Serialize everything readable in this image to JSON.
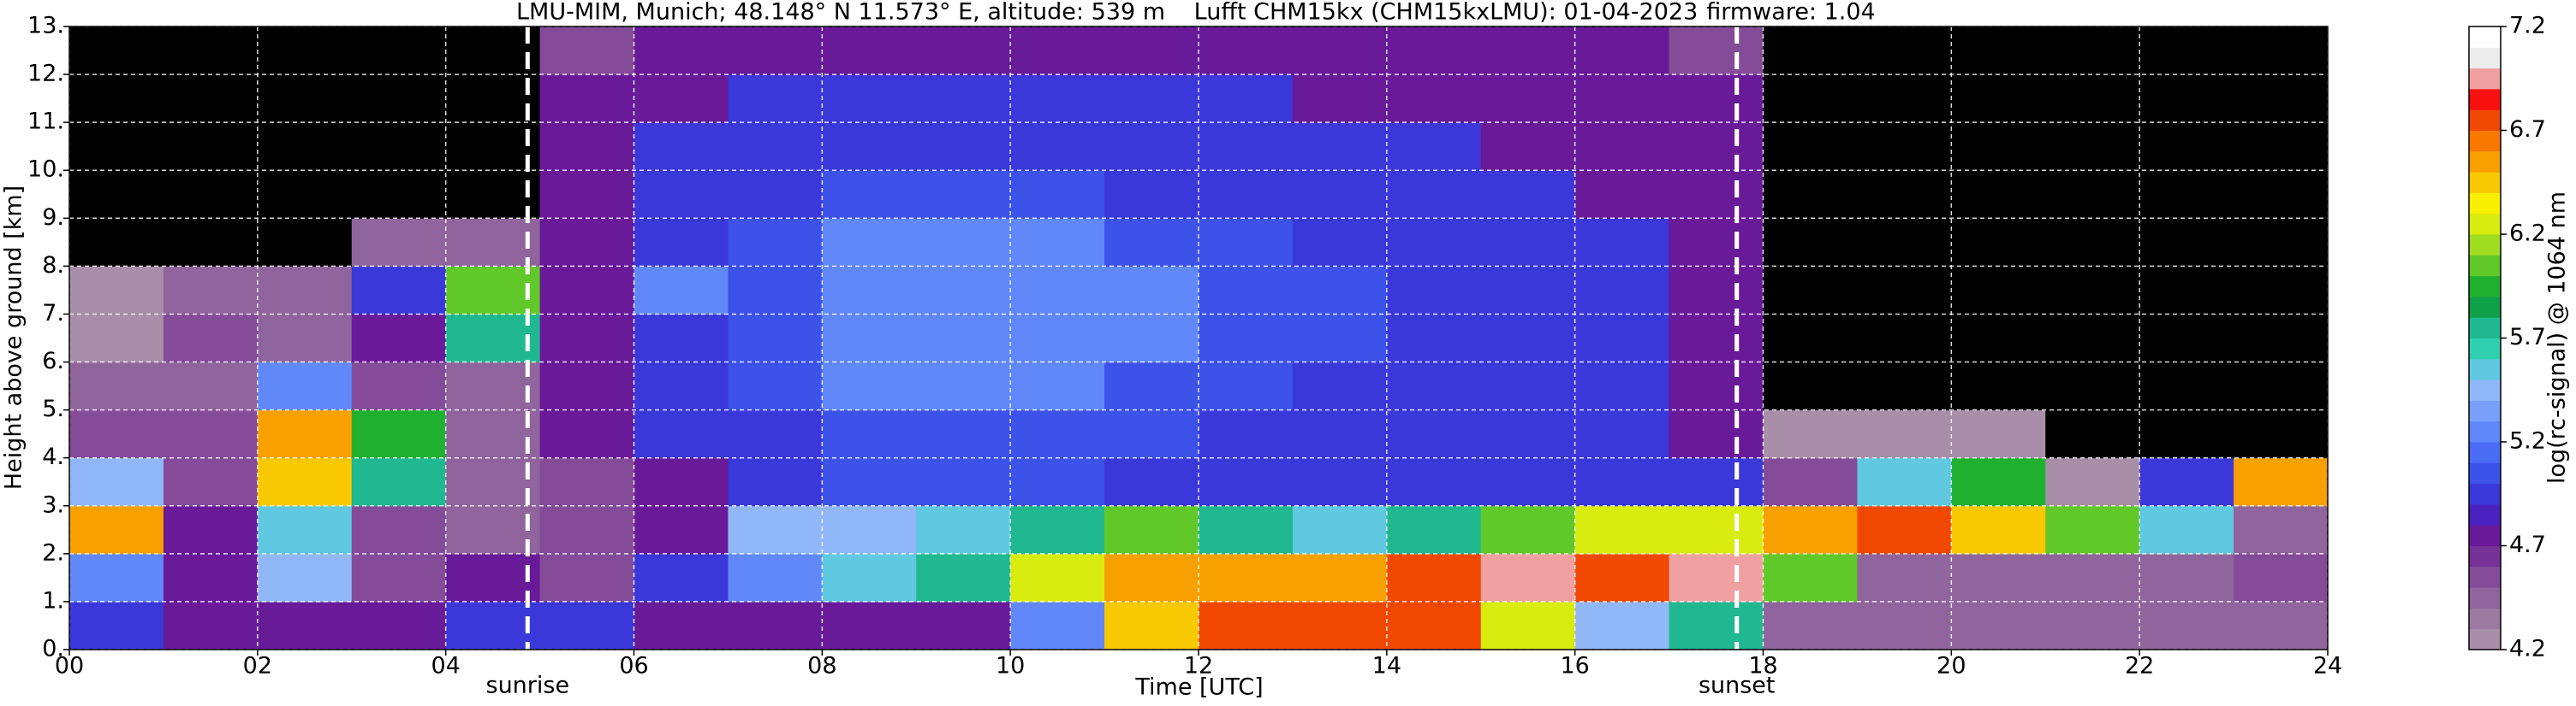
{
  "chart_data": {
    "type": "heatmap",
    "title": [
      "LMU-MIM, Munich; 48.148° N 11.573° E, altitude: 539 m",
      "Lufft CHM15kx (CHM15kxLMU): 01-04-2023",
      "firmware: 1.04"
    ],
    "x_label": "Time [UTC]",
    "y_label": "Height above ground [km]",
    "colorbar_label": "log(rc-signal) @ 1064 nm",
    "xlim": [
      0,
      24
    ],
    "ylim": [
      0,
      13
    ],
    "xticks": [
      {
        "value": 0,
        "label": "00"
      },
      {
        "value": 2,
        "label": "02"
      },
      {
        "value": 4,
        "label": "04"
      },
      {
        "value": 6,
        "label": "06"
      },
      {
        "value": 8,
        "label": "08"
      },
      {
        "value": 10,
        "label": "10"
      },
      {
        "value": 12,
        "label": "12"
      },
      {
        "value": 14,
        "label": "14"
      },
      {
        "value": 16,
        "label": "16"
      },
      {
        "value": 18,
        "label": "18"
      },
      {
        "value": 20,
        "label": "20"
      },
      {
        "value": 22,
        "label": "22"
      },
      {
        "value": 24,
        "label": "24"
      }
    ],
    "yticks": [
      {
        "value": 0,
        "label": "0."
      },
      {
        "value": 1,
        "label": "1."
      },
      {
        "value": 2,
        "label": "2."
      },
      {
        "value": 3,
        "label": "3."
      },
      {
        "value": 4,
        "label": "4."
      },
      {
        "value": 5,
        "label": "5."
      },
      {
        "value": 6,
        "label": "6."
      },
      {
        "value": 7,
        "label": "7."
      },
      {
        "value": 8,
        "label": "8."
      },
      {
        "value": 9,
        "label": "9."
      },
      {
        "value": 10,
        "label": "10."
      },
      {
        "value": 11,
        "label": "11."
      },
      {
        "value": 12,
        "label": "12."
      },
      {
        "value": 13,
        "label": "13."
      }
    ],
    "clim": [
      4.2,
      7.2
    ],
    "cticks": [
      4.2,
      4.7,
      5.2,
      5.7,
      6.2,
      6.7,
      7.2
    ],
    "grid": true,
    "under_color": "#000000",
    "colormap": [
      "#a88ea8",
      "#9c7aa2",
      "#90649c",
      "#844c98",
      "#763296",
      "#681a98",
      "#4a22c0",
      "#3a38d8",
      "#3c52e8",
      "#4a6cf4",
      "#6088f8",
      "#78a0f8",
      "#90b8f8",
      "#60c8e0",
      "#30d0b0",
      "#20b890",
      "#10a048",
      "#20b030",
      "#60c828",
      "#a0dc20",
      "#d8ec10",
      "#f8f000",
      "#f8c800",
      "#f8a000",
      "#f87800",
      "#f04800",
      "#f81010",
      "#f0a0a0",
      "#ececec",
      "#ffffff"
    ],
    "events": [
      {
        "label": "sunrise",
        "x": 4.87
      },
      {
        "label": "sunset",
        "x": 17.72
      }
    ],
    "x_bins": [
      0,
      1,
      2,
      3,
      4,
      5,
      6,
      7,
      8,
      9,
      10,
      11,
      12,
      13,
      14,
      15,
      16,
      17,
      18,
      19,
      20,
      21,
      22,
      23,
      24
    ],
    "y_bins": [
      0,
      1,
      2,
      3,
      4,
      5,
      6,
      7,
      8,
      9,
      10,
      11,
      12,
      13
    ],
    "z": [
      [
        5.0,
        4.8,
        4.8,
        4.7,
        5.0,
        4.9,
        4.8,
        4.8,
        4.8,
        4.8,
        5.3,
        6.4,
        6.8,
        6.7,
        6.8,
        6.2,
        5.4,
        5.8,
        4.5,
        4.4,
        4.4,
        4.4,
        4.4,
        4.5
      ],
      [
        5.2,
        4.8,
        5.4,
        4.6,
        4.8,
        4.6,
        5.0,
        5.2,
        5.6,
        5.8,
        6.3,
        6.6,
        6.5,
        6.6,
        6.8,
        6.9,
        6.7,
        6.9,
        6.0,
        4.5,
        4.5,
        4.5,
        4.4,
        4.6
      ],
      [
        6.6,
        4.7,
        5.6,
        4.6,
        4.5,
        4.6,
        4.8,
        5.4,
        5.5,
        5.6,
        5.8,
        6.0,
        5.8,
        5.6,
        5.8,
        6.0,
        6.3,
        6.2,
        6.5,
        6.8,
        6.4,
        6.0,
        5.6,
        4.4
      ],
      [
        5.4,
        4.6,
        6.4,
        5.8,
        4.4,
        4.6,
        4.8,
        5.0,
        5.1,
        5.1,
        5.1,
        5.0,
        5.0,
        5.0,
        5.0,
        4.9,
        5.0,
        5.0,
        4.6,
        5.6,
        5.9,
        4.3,
        4.9,
        6.5
      ],
      [
        4.6,
        4.6,
        6.5,
        5.9,
        4.4,
        4.7,
        4.9,
        5.0,
        5.1,
        5.1,
        5.1,
        5.1,
        5.0,
        5.0,
        5.0,
        4.9,
        4.9,
        4.8,
        4.3,
        4.3,
        4.3,
        4.0,
        4.0,
        4.0
      ],
      [
        4.4,
        4.5,
        5.3,
        4.6,
        4.4,
        4.7,
        5.0,
        5.1,
        5.2,
        5.2,
        5.2,
        5.1,
        5.1,
        5.0,
        5.0,
        5.0,
        4.9,
        4.8,
        4.0,
        4.0,
        4.0,
        4.0,
        4.0,
        4.0
      ],
      [
        4.3,
        4.6,
        4.5,
        4.8,
        5.8,
        4.8,
        5.0,
        5.1,
        5.2,
        5.2,
        5.2,
        5.2,
        5.1,
        5.1,
        5.0,
        5.0,
        4.9,
        4.8,
        4.0,
        4.0,
        4.0,
        4.0,
        4.0,
        4.0
      ],
      [
        4.3,
        4.5,
        4.4,
        5.0,
        6.0,
        4.8,
        5.3,
        5.1,
        5.3,
        5.3,
        5.2,
        5.2,
        5.1,
        5.1,
        5.0,
        5.0,
        4.9,
        4.8,
        4.0,
        4.0,
        4.0,
        4.0,
        4.0,
        4.0
      ],
      [
        4.0,
        4.0,
        4.0,
        4.4,
        4.5,
        4.8,
        5.0,
        5.1,
        5.3,
        5.3,
        5.2,
        5.1,
        5.1,
        5.0,
        5.0,
        4.9,
        4.9,
        4.8,
        4.0,
        4.0,
        4.0,
        4.0,
        4.0,
        4.0
      ],
      [
        4.0,
        4.0,
        4.0,
        4.0,
        4.0,
        4.8,
        5.0,
        5.0,
        5.1,
        5.1,
        5.1,
        5.0,
        5.0,
        5.0,
        4.9,
        4.9,
        4.8,
        4.8,
        4.0,
        4.0,
        4.0,
        4.0,
        4.0,
        4.0
      ],
      [
        4.0,
        4.0,
        4.0,
        4.0,
        4.0,
        4.7,
        4.9,
        5.0,
        5.0,
        5.0,
        5.0,
        5.0,
        4.9,
        4.9,
        4.9,
        4.8,
        4.8,
        4.7,
        4.0,
        4.0,
        4.0,
        4.0,
        4.0,
        4.0
      ],
      [
        4.0,
        4.0,
        4.0,
        4.0,
        4.0,
        4.7,
        4.8,
        4.9,
        4.9,
        4.9,
        4.9,
        4.9,
        4.9,
        4.8,
        4.8,
        4.8,
        4.7,
        4.7,
        4.0,
        4.0,
        4.0,
        4.0,
        4.0,
        4.0
      ],
      [
        4.0,
        4.0,
        4.0,
        4.0,
        4.0,
        4.6,
        4.7,
        4.8,
        4.8,
        4.8,
        4.8,
        4.8,
        4.8,
        4.8,
        4.8,
        4.7,
        4.7,
        4.6,
        4.0,
        4.0,
        4.0,
        4.0,
        4.0,
        4.0
      ]
    ]
  }
}
